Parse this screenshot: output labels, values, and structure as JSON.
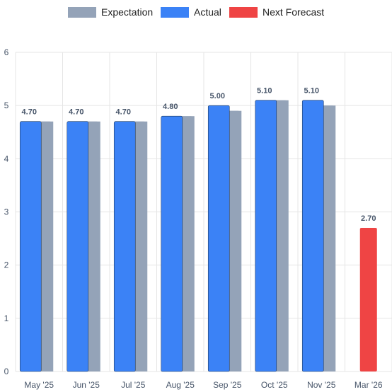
{
  "colors": {
    "expectation": "#94A3B8",
    "actual": "#3B82F6",
    "forecast": "#EF4444",
    "grid": "#E5E5E5",
    "axis_text": "#475569",
    "value_label": "#475569"
  },
  "legend": [
    {
      "name": "Expectation",
      "color": "#94A3B8"
    },
    {
      "name": "Actual",
      "color": "#3B82F6"
    },
    {
      "name": "Next Forecast",
      "color": "#EF4444"
    }
  ],
  "chart_data": {
    "type": "bar",
    "categories": [
      "May '25",
      "Jun '25",
      "Jul '25",
      "Aug '25",
      "Sep '25",
      "Oct '25",
      "Nov '25",
      "Mar '26"
    ],
    "series": [
      {
        "name": "Actual",
        "values": [
          4.7,
          4.7,
          4.7,
          4.8,
          5.0,
          5.1,
          5.1,
          null
        ]
      },
      {
        "name": "Expectation",
        "values": [
          4.7,
          4.7,
          4.7,
          4.8,
          4.9,
          5.1,
          5.0,
          null
        ]
      },
      {
        "name": "Next Forecast",
        "values": [
          null,
          null,
          null,
          null,
          null,
          null,
          null,
          2.7
        ]
      }
    ],
    "data_labels": [
      "4.70",
      "4.70",
      "4.70",
      "4.80",
      "5.00",
      "5.10",
      "5.10",
      "2.70"
    ],
    "y_ticks": [
      "0",
      "1",
      "2",
      "3",
      "4",
      "5",
      "6"
    ],
    "ylim": [
      0,
      6
    ],
    "grid": true,
    "legend_position": "top"
  }
}
